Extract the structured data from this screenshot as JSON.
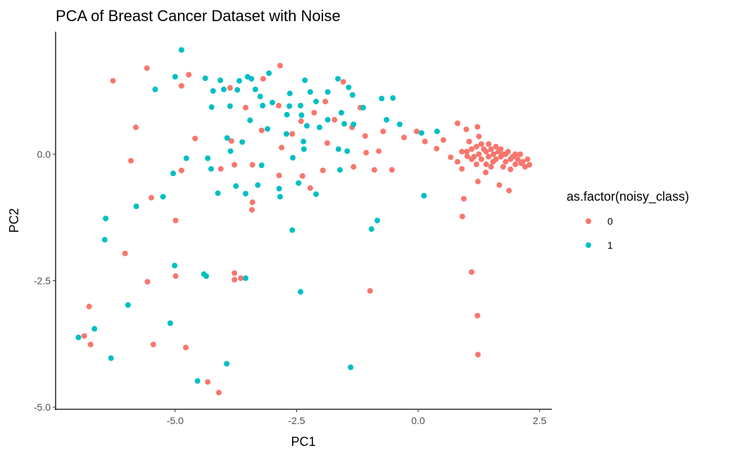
{
  "chart_data": {
    "type": "scatter",
    "title": "PCA of Breast Cancer Dataset with Noise",
    "xlabel": "PC1",
    "ylabel": "PC2",
    "xlim": [
      -7.46,
      2.75
    ],
    "ylim": [
      -5.04,
      2.42
    ],
    "xticks": [
      {
        "value": -5.0,
        "label": "-5.0"
      },
      {
        "value": -2.5,
        "label": "-2.5"
      },
      {
        "value": 0.0,
        "label": "0.0"
      },
      {
        "value": 2.5,
        "label": "2.5"
      }
    ],
    "yticks": [
      {
        "value": 0.0,
        "label": "0.0"
      },
      {
        "value": -2.5,
        "label": "-2.5"
      },
      {
        "value": -5.0,
        "label": "-5.0"
      }
    ],
    "grid": false,
    "legend": {
      "title": "as.factor(noisy_class)",
      "placement": "right"
    },
    "series": [
      {
        "name": "0",
        "color": "#F8766D",
        "points": [
          [
            -6.28,
            1.45
          ],
          [
            -5.58,
            1.7
          ],
          [
            -5.81,
            0.53
          ],
          [
            -5.91,
            -0.13
          ],
          [
            -4.87,
            -0.32
          ],
          [
            -5.49,
            -0.86
          ],
          [
            -4.99,
            -1.31
          ],
          [
            -6.03,
            -1.96
          ],
          [
            -5.57,
            -2.52
          ],
          [
            -4.99,
            -2.41
          ],
          [
            -6.77,
            -3.01
          ],
          [
            -6.87,
            -3.59
          ],
          [
            -6.74,
            -3.76
          ],
          [
            -5.45,
            -3.76
          ],
          [
            -4.78,
            -3.82
          ],
          [
            -4.33,
            -4.5
          ],
          [
            -4.1,
            -4.71
          ],
          [
            -3.78,
            -2.35
          ],
          [
            -3.78,
            -2.48
          ],
          [
            -3.65,
            -2.45
          ],
          [
            -0.99,
            -2.7
          ],
          [
            1.1,
            -2.33
          ],
          [
            1.22,
            -3.19
          ],
          [
            1.23,
            -3.96
          ],
          [
            0.91,
            -1.23
          ],
          [
            0.94,
            -0.88
          ],
          [
            1.23,
            -0.54
          ],
          [
            1.67,
            -0.61
          ],
          [
            1.87,
            -0.72
          ],
          [
            -2.84,
            1.75
          ],
          [
            -4.72,
            1.57
          ],
          [
            -4.87,
            1.35
          ],
          [
            -4.59,
            0.31
          ],
          [
            -3.42,
            -1.1
          ],
          [
            -3.41,
            -0.95
          ],
          [
            -3.78,
            -0.21
          ],
          [
            -4.06,
            -0.29
          ],
          [
            -3.84,
            0.26
          ],
          [
            -3.41,
            -0.21
          ],
          [
            -2.86,
            -0.42
          ],
          [
            -2.22,
            -0.67
          ],
          [
            -2.38,
            -0.43
          ],
          [
            -1.96,
            -0.32
          ],
          [
            -1.33,
            -0.25
          ],
          [
            -0.9,
            -0.31
          ],
          [
            -0.54,
            -0.31
          ],
          [
            -1.07,
            0.03
          ],
          [
            -0.81,
            0.06
          ],
          [
            -1.09,
            0.36
          ],
          [
            -1.36,
            0.53
          ],
          [
            -1.19,
            0.92
          ],
          [
            -1.87,
            0.22
          ],
          [
            -2.14,
            0.82
          ],
          [
            -2.41,
            0.65
          ],
          [
            -2.87,
            0.96
          ],
          [
            -3.19,
            1.49
          ],
          [
            -3.87,
            1.31
          ],
          [
            -3.55,
            0.92
          ],
          [
            -3.22,
            0.47
          ],
          [
            -2.81,
            0.13
          ],
          [
            -2.59,
            0.4
          ],
          [
            -1.91,
            1.04
          ],
          [
            -1.54,
            1.43
          ],
          [
            -1.72,
            0.68
          ],
          [
            -0.72,
            0.45
          ],
          [
            -0.29,
            0.33
          ],
          [
            -0.03,
            0.45
          ],
          [
            0.14,
            0.25
          ],
          [
            0.38,
            0.11
          ],
          [
            0.52,
            0.28
          ],
          [
            0.81,
            0.61
          ],
          [
            0.99,
            0.49
          ],
          [
            1.22,
            0.54
          ],
          [
            0.67,
            -0.06
          ],
          [
            0.81,
            -0.15
          ],
          [
            0.9,
            -0.29
          ],
          [
            1.01,
            -0.04
          ],
          [
            1.39,
            -0.36
          ],
          [
            1.54,
            -0.15
          ],
          [
            2.12,
            -0.18
          ],
          [
            2.29,
            -0.21
          ],
          [
            1.0,
            0.05
          ],
          [
            1.1,
            0.1
          ],
          [
            1.15,
            -0.05
          ],
          [
            1.2,
            0.15
          ],
          [
            1.25,
            0.0
          ],
          [
            1.3,
            -0.1
          ],
          [
            1.35,
            0.1
          ],
          [
            1.4,
            0.05
          ],
          [
            1.45,
            -0.05
          ],
          [
            1.5,
            0.1
          ],
          [
            1.55,
            0.0
          ],
          [
            1.6,
            -0.1
          ],
          [
            1.65,
            0.05
          ],
          [
            1.7,
            -0.05
          ],
          [
            1.75,
            0.0
          ],
          [
            1.8,
            -0.15
          ],
          [
            1.85,
            0.05
          ],
          [
            1.9,
            -0.1
          ],
          [
            1.95,
            -0.05
          ],
          [
            2.0,
            -0.2
          ],
          [
            2.05,
            -0.1
          ],
          [
            2.1,
            0.0
          ],
          [
            2.15,
            -0.15
          ],
          [
            2.2,
            -0.25
          ],
          [
            1.3,
            0.2
          ],
          [
            1.4,
            -0.2
          ],
          [
            1.5,
            -0.25
          ],
          [
            1.6,
            0.15
          ],
          [
            1.7,
            0.1
          ],
          [
            1.8,
            0.0
          ],
          [
            1.9,
            -0.3
          ],
          [
            2.0,
            0.0
          ],
          [
            1.2,
            -0.2
          ],
          [
            1.1,
            -0.1
          ],
          [
            0.9,
            0.05
          ],
          [
            1.05,
            0.25
          ],
          [
            1.25,
            0.35
          ],
          [
            1.45,
            0.2
          ],
          [
            1.75,
            -0.25
          ],
          [
            2.25,
            -0.1
          ]
        ]
      },
      {
        "name": "1",
        "color": "#00BFC4",
        "points": [
          [
            -4.87,
            2.06
          ],
          [
            -5.0,
            1.53
          ],
          [
            -5.41,
            1.28
          ],
          [
            -6.99,
            -3.62
          ],
          [
            -6.66,
            -3.45
          ],
          [
            -6.32,
            -4.03
          ],
          [
            -6.43,
            -1.27
          ],
          [
            -6.45,
            -1.69
          ],
          [
            -5.8,
            -1.03
          ],
          [
            -5.25,
            -0.84
          ],
          [
            -5.04,
            -0.38
          ],
          [
            -4.77,
            -0.08
          ],
          [
            -5.97,
            -2.98
          ],
          [
            -5.01,
            -2.2
          ],
          [
            -5.1,
            -3.34
          ],
          [
            -4.41,
            -2.37
          ],
          [
            -4.36,
            -2.41
          ],
          [
            -4.54,
            -4.48
          ],
          [
            -3.94,
            -4.14
          ],
          [
            -3.55,
            -2.45
          ],
          [
            -2.42,
            -2.72
          ],
          [
            -1.39,
            -4.21
          ],
          [
            -2.59,
            -1.5
          ],
          [
            -0.96,
            -1.48
          ],
          [
            -0.84,
            -1.31
          ],
          [
            0.12,
            -0.82
          ],
          [
            -2.1,
            -0.79
          ],
          [
            -2.46,
            -0.57
          ],
          [
            -2.84,
            -0.84
          ],
          [
            -2.86,
            -0.68
          ],
          [
            -3.3,
            -0.61
          ],
          [
            -3.55,
            -0.78
          ],
          [
            -3.75,
            -0.63
          ],
          [
            -4.12,
            -0.77
          ],
          [
            -3.22,
            -0.22
          ],
          [
            -4.26,
            -0.29
          ],
          [
            -4.33,
            -0.08
          ],
          [
            -3.86,
            0.06
          ],
          [
            -3.62,
            0.24
          ],
          [
            -3.93,
            0.32
          ],
          [
            -3.46,
            0.67
          ],
          [
            -3.1,
            0.5
          ],
          [
            -2.71,
            0.4
          ],
          [
            -2.36,
            0.25
          ],
          [
            -2.35,
            0.1
          ],
          [
            -2.58,
            -0.07
          ],
          [
            -1.64,
            0.1
          ],
          [
            -1.46,
            0.06
          ],
          [
            -1.61,
            -0.31
          ],
          [
            -1.58,
            0.82
          ],
          [
            -1.52,
            0.6
          ],
          [
            -1.86,
            0.68
          ],
          [
            -2.03,
            0.53
          ],
          [
            -1.33,
            0.59
          ],
          [
            -1.13,
            0.92
          ],
          [
            -0.75,
            1.1
          ],
          [
            -0.52,
            1.11
          ],
          [
            -0.65,
            0.68
          ],
          [
            -0.38,
            0.59
          ],
          [
            0.07,
            0.42
          ],
          [
            0.39,
            0.45
          ],
          [
            -3.07,
            1.6
          ],
          [
            -3.51,
            1.53
          ],
          [
            -3.43,
            1.49
          ],
          [
            -3.68,
            1.45
          ],
          [
            -4.07,
            1.46
          ],
          [
            -4.38,
            1.5
          ],
          [
            -4.22,
            1.25
          ],
          [
            -4.25,
            0.93
          ],
          [
            -4.0,
            1.28
          ],
          [
            -3.87,
            0.95
          ],
          [
            -3.72,
            1.27
          ],
          [
            -3.35,
            1.28
          ],
          [
            -3.2,
            0.96
          ],
          [
            -3.0,
            1.02
          ],
          [
            -3.25,
            1.14
          ],
          [
            -2.64,
            1.2
          ],
          [
            -2.33,
            1.46
          ],
          [
            -2.22,
            1.23
          ],
          [
            -2.1,
            1.04
          ],
          [
            -1.86,
            1.23
          ],
          [
            -1.65,
            1.49
          ],
          [
            -1.43,
            1.32
          ],
          [
            -1.35,
            1.17
          ],
          [
            -2.65,
            0.95
          ],
          [
            -2.42,
            0.96
          ],
          [
            -2.4,
            0.77
          ],
          [
            -2.7,
            0.78
          ],
          [
            -2.29,
            0.56
          ]
        ]
      }
    ]
  }
}
